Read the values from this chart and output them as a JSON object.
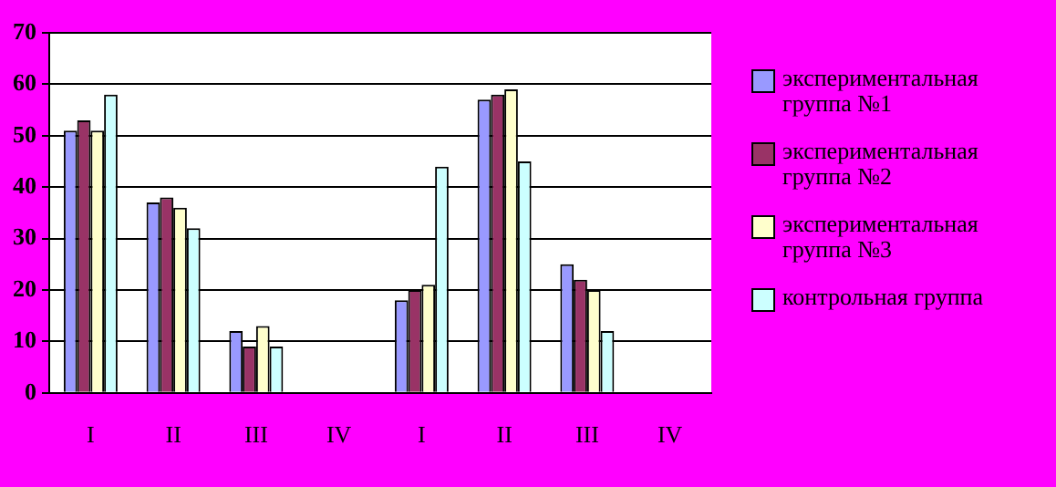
{
  "chart_data": {
    "type": "bar",
    "categories": [
      "I",
      "II",
      "III",
      "IV",
      "I",
      "II",
      "III",
      "IV"
    ],
    "series": [
      {
        "name": "экспериментальная группа №1",
        "color": "#9999ff",
        "values": [
          51,
          37,
          12,
          null,
          18,
          57,
          25,
          null
        ]
      },
      {
        "name": "экспериментальная группа №2",
        "color": "#993366",
        "values": [
          53,
          38,
          9,
          null,
          20,
          58,
          22,
          null
        ]
      },
      {
        "name": "экспериментальная группа №3",
        "color": "#ffffcc",
        "values": [
          51,
          36,
          13,
          null,
          21,
          59,
          20,
          null
        ]
      },
      {
        "name": "контрольная группа",
        "color": "#ccffff",
        "values": [
          58,
          32,
          9,
          null,
          44,
          45,
          12,
          null
        ]
      }
    ],
    "ylim": [
      0,
      70
    ],
    "yticks": [
      0,
      10,
      20,
      30,
      40,
      50,
      60,
      70
    ],
    "grid": "y",
    "legend": "right"
  }
}
